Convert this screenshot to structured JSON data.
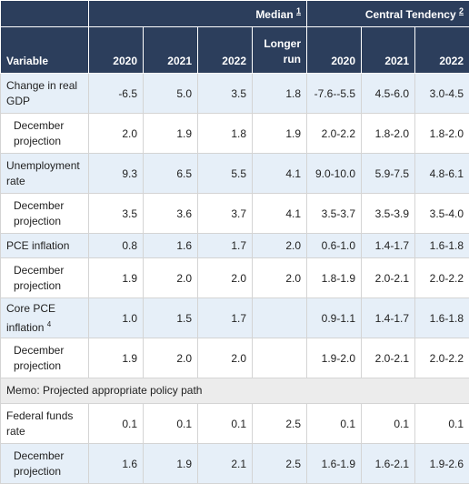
{
  "header": {
    "median_label": "Median",
    "median_note": "1",
    "central_label": "Central Tendency",
    "central_note": "2",
    "variable": "Variable",
    "col_2020": "2020",
    "col_2021": "2021",
    "col_2022": "2022",
    "longer_run_1": "Longer",
    "longer_run_2": "run",
    "ct_2020": "2020",
    "ct_2021": "2021",
    "ct_2022": "2022"
  },
  "rows": [
    {
      "l1": "Change in real",
      "l2": "GDP",
      "m2020": "-6.5",
      "m2021": "5.0",
      "m2022": "3.5",
      "lr": "1.8",
      "c2020": "-7.6--5.5",
      "c2021": "4.5-6.0",
      "c2022": "3.0-4.5"
    },
    {
      "l1": "December",
      "l2": "projection",
      "m2020": "2.0",
      "m2021": "1.9",
      "m2022": "1.8",
      "lr": "1.9",
      "c2020": "2.0-2.2",
      "c2021": "1.8-2.0",
      "c2022": "1.8-2.0"
    },
    {
      "l1": "Unemployment",
      "l2": "rate",
      "m2020": "9.3",
      "m2021": "6.5",
      "m2022": "5.5",
      "lr": "4.1",
      "c2020": "9.0-10.0",
      "c2021": "5.9-7.5",
      "c2022": "4.8-6.1"
    },
    {
      "l1": "December",
      "l2": "projection",
      "m2020": "3.5",
      "m2021": "3.6",
      "m2022": "3.7",
      "lr": "4.1",
      "c2020": "3.5-3.7",
      "c2021": "3.5-3.9",
      "c2022": "3.5-4.0"
    },
    {
      "l1": "PCE inflation",
      "m2020": "0.8",
      "m2021": "1.6",
      "m2022": "1.7",
      "lr": "2.0",
      "c2020": "0.6-1.0",
      "c2021": "1.4-1.7",
      "c2022": "1.6-1.8"
    },
    {
      "l1": "December",
      "l2": "projection",
      "m2020": "1.9",
      "m2021": "2.0",
      "m2022": "2.0",
      "lr": "2.0",
      "c2020": "1.8-1.9",
      "c2021": "2.0-2.1",
      "c2022": "2.0-2.2"
    },
    {
      "l1": "Core PCE",
      "l2": "inflation",
      "note": "4",
      "m2020": "1.0",
      "m2021": "1.5",
      "m2022": "1.7",
      "lr": "",
      "c2020": "0.9-1.1",
      "c2021": "1.4-1.7",
      "c2022": "1.6-1.8"
    },
    {
      "l1": "December",
      "l2": "projection",
      "m2020": "1.9",
      "m2021": "2.0",
      "m2022": "2.0",
      "lr": "",
      "c2020": "1.9-2.0",
      "c2021": "2.0-2.1",
      "c2022": "2.0-2.2"
    }
  ],
  "memo": "Memo: Projected appropriate policy path",
  "rows_after": [
    {
      "l1": "Federal funds",
      "l2": "rate",
      "m2020": "0.1",
      "m2021": "0.1",
      "m2022": "0.1",
      "lr": "2.5",
      "c2020": "0.1",
      "c2021": "0.1",
      "c2022": "0.1"
    },
    {
      "l1": "December",
      "l2": "projection",
      "m2020": "1.6",
      "m2021": "1.9",
      "m2022": "2.1",
      "lr": "2.5",
      "c2020": "1.6-1.9",
      "c2021": "1.6-2.1",
      "c2022": "1.9-2.6"
    }
  ]
}
